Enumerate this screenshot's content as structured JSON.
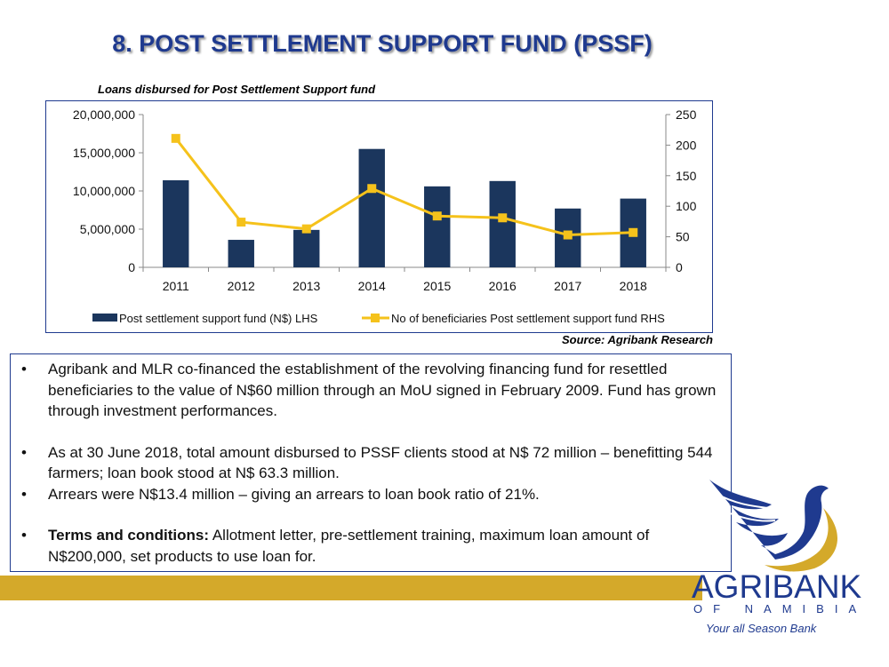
{
  "slide": {
    "title": "8. POST SETTLEMENT SUPPORT FUND (PSSF)",
    "source": "Source: Agribank Research"
  },
  "chart_data": {
    "type": "bar",
    "title": "Loans disbursed for Post Settlement Support fund",
    "categories": [
      "2011",
      "2012",
      "2013",
      "2014",
      "2015",
      "2016",
      "2017",
      "2018"
    ],
    "series": [
      {
        "name": "Post settlement support fund  (N$) LHS",
        "type": "bar",
        "axis": "left",
        "color": "#1b365d",
        "values": [
          11400000,
          3600000,
          4900000,
          15500000,
          10600000,
          11300000,
          7700000,
          9000000
        ]
      },
      {
        "name": "No of beneficiaries Post settlement support fund  RHS",
        "type": "line",
        "axis": "right",
        "color": "#f5c21b",
        "values": [
          211,
          74,
          63,
          129,
          84,
          81,
          53,
          57
        ]
      }
    ],
    "left_axis": {
      "range": [
        0,
        20000000
      ],
      "ticks": [
        0,
        5000000,
        10000000,
        15000000,
        20000000
      ],
      "tick_labels": [
        "0",
        "5,000,000",
        "10,000,000",
        "15,000,000",
        "20,000,000"
      ]
    },
    "right_axis": {
      "range": [
        0,
        250
      ],
      "ticks": [
        0,
        50,
        100,
        150,
        200,
        250
      ],
      "tick_labels": [
        "0",
        "50",
        "100",
        "150",
        "200",
        "250"
      ]
    },
    "grid": false,
    "legend": "bottom"
  },
  "bullets": [
    {
      "bold": "",
      "text": "Agribank and MLR co-financed the establishment of the revolving financing fund for resettled beneficiaries to the value of N$60 million through an MoU signed in February 2009. Fund has grown through investment performances."
    },
    {
      "bold": "",
      "text": "As at 30 June 2018, total amount disbursed to PSSF clients stood at N$ 72 million – benefitting 544 farmers; loan book stood at N$ 63.3 million."
    },
    {
      "bold": "",
      "text": "Arrears were N$13.4 million – giving an arrears to loan book ratio of 21%."
    },
    {
      "bold": "Terms and conditions:",
      "text": " Allotment letter, pre-settlement training, maximum loan amount of N$200,000, set products to use loan for."
    }
  ],
  "logo": {
    "name": "AGRIBANK",
    "sub": "OF NAMIBIA",
    "tagline": "Your all Season Bank",
    "colors": {
      "blue": "#1f3a8f",
      "gold": "#d4a92a"
    }
  }
}
